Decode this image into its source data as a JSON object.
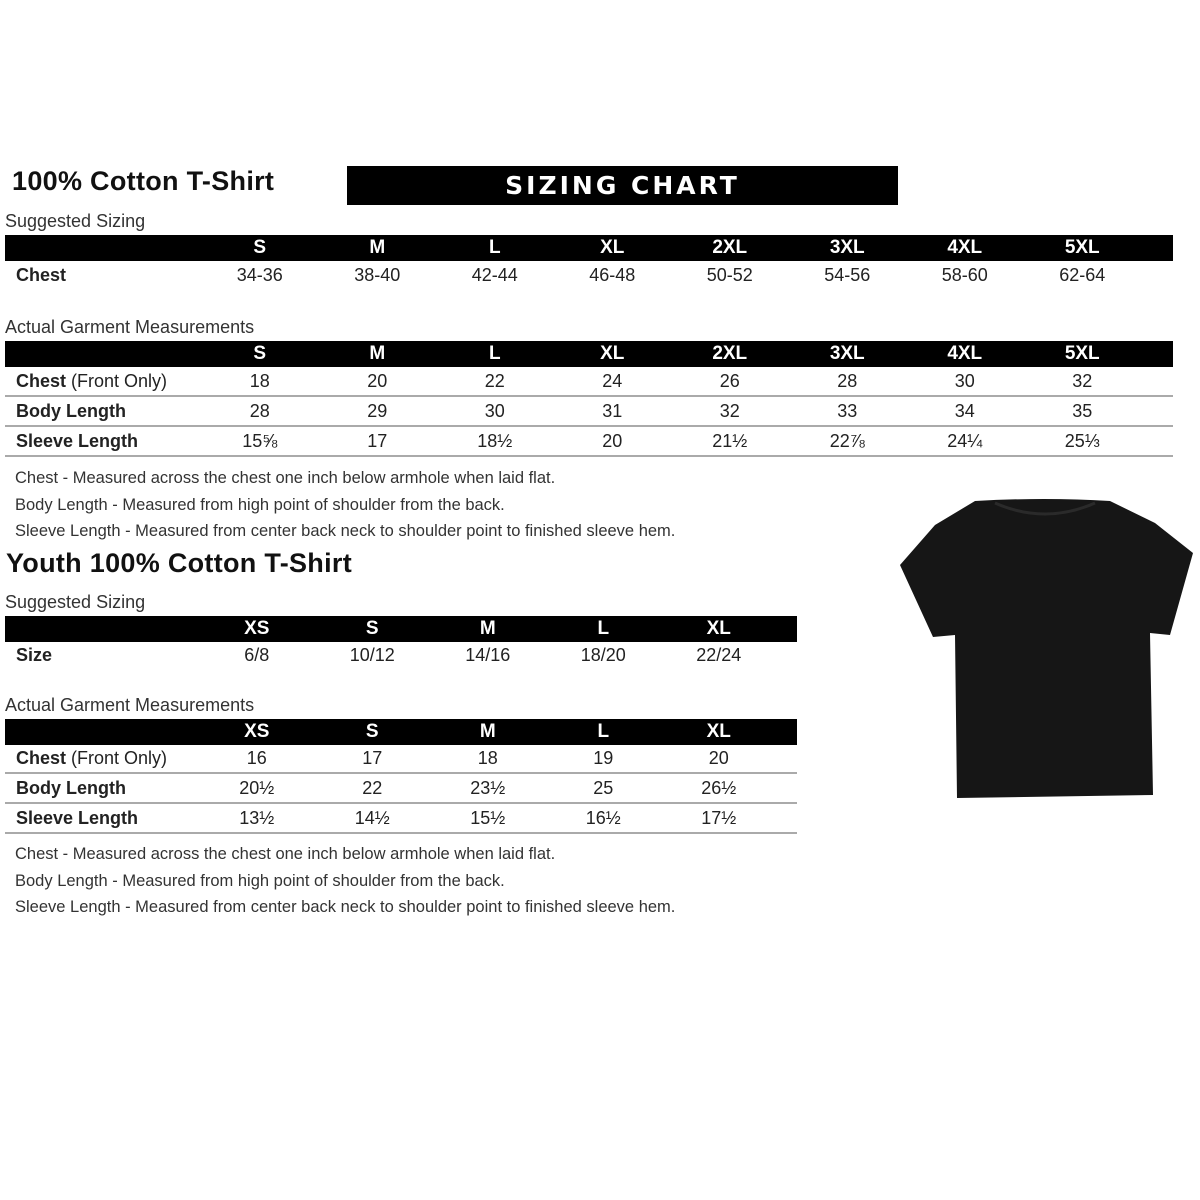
{
  "adult": {
    "title": "100% Cotton T-Shirt",
    "banner": "SIZING CHART",
    "suggested_label": "Suggested Sizing",
    "sizes": [
      "S",
      "M",
      "L",
      "XL",
      "2XL",
      "3XL",
      "4XL",
      "5XL"
    ],
    "suggested_rows": [
      {
        "label": "Chest",
        "values": [
          "34-36",
          "38-40",
          "42-44",
          "46-48",
          "50-52",
          "54-56",
          "58-60",
          "62-64"
        ]
      }
    ],
    "actual_label": "Actual Garment Measurements",
    "actual_rows": [
      {
        "label": "Chest",
        "label_extra": "(Front Only)",
        "values": [
          "18",
          "20",
          "22",
          "24",
          "26",
          "28",
          "30",
          "32"
        ]
      },
      {
        "label": "Body Length",
        "label_extra": "",
        "values": [
          "28",
          "29",
          "30",
          "31",
          "32",
          "33",
          "34",
          "35"
        ]
      },
      {
        "label": "Sleeve Length",
        "label_extra": "",
        "values": [
          "15⅝",
          "17",
          "18½",
          "20",
          "21½",
          "22⅞",
          "24¼",
          "25⅓"
        ]
      }
    ],
    "notes": [
      "Chest - Measured across the chest one inch below armhole when laid flat.",
      "Body Length - Measured from high point of shoulder from the back.",
      "Sleeve Length - Measured from center back neck to shoulder point to finished sleeve hem."
    ]
  },
  "youth": {
    "title": "Youth 100% Cotton T-Shirt",
    "suggested_label": "Suggested Sizing",
    "sizes": [
      "XS",
      "S",
      "M",
      "L",
      "XL"
    ],
    "suggested_rows": [
      {
        "label": "Size",
        "values": [
          "6/8",
          "10/12",
          "14/16",
          "18/20",
          "22/24"
        ]
      }
    ],
    "actual_label": "Actual Garment Measurements",
    "actual_rows": [
      {
        "label": "Chest",
        "label_extra": "(Front Only)",
        "values": [
          "16",
          "17",
          "18",
          "19",
          "20"
        ]
      },
      {
        "label": "Body Length",
        "label_extra": "",
        "values": [
          "20½",
          "22",
          "23½",
          "25",
          "26½"
        ]
      },
      {
        "label": "Sleeve Length",
        "label_extra": "",
        "values": [
          "13½",
          "14½",
          "15½",
          "16½",
          "17½"
        ]
      }
    ],
    "notes": [
      "Chest - Measured across the chest one inch below armhole when laid flat.",
      "Body Length - Measured from high point of shoulder from the back.",
      "Sleeve Length - Measured from center back neck to shoulder point to finished sleeve hem."
    ]
  },
  "tshirt_color": "#161616"
}
